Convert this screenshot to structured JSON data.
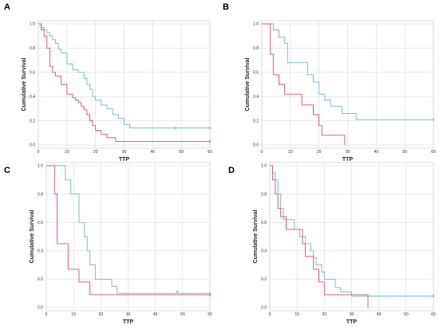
{
  "colors": {
    "blue": "#6cb6e6",
    "red": "#e0506e"
  },
  "chart_data": [
    {
      "panel": "A",
      "type": "line",
      "step": true,
      "xlabel": "TTP",
      "ylabel": "Cumulative Survival",
      "xlim": [
        0,
        60
      ],
      "ylim": [
        0,
        1
      ],
      "xticks": [
        0,
        10,
        20,
        30,
        40,
        50,
        60
      ],
      "yticks": [
        0.0,
        0.2,
        0.4,
        0.6,
        0.8,
        1.0
      ],
      "grid": true,
      "series": [
        {
          "color": "blue",
          "x": [
            0,
            1,
            2,
            3,
            4,
            5,
            6,
            7,
            8,
            10,
            12,
            14,
            16,
            17,
            18,
            19,
            20,
            22,
            24,
            26,
            28,
            30,
            32,
            60
          ],
          "y": [
            1.0,
            0.97,
            0.95,
            0.93,
            0.9,
            0.87,
            0.84,
            0.79,
            0.76,
            0.67,
            0.62,
            0.6,
            0.55,
            0.5,
            0.46,
            0.4,
            0.37,
            0.33,
            0.3,
            0.25,
            0.22,
            0.17,
            0.14,
            0.14
          ],
          "censored": [
            [
              48,
              0.14
            ],
            [
              60,
              0.14
            ]
          ]
        },
        {
          "color": "red",
          "x": [
            0,
            1,
            2,
            3,
            4,
            5,
            6,
            8,
            10,
            12,
            13,
            14,
            15,
            16,
            17,
            18,
            19,
            20,
            22,
            24,
            27,
            60
          ],
          "y": [
            1.0,
            0.95,
            0.9,
            0.8,
            0.65,
            0.6,
            0.57,
            0.5,
            0.42,
            0.39,
            0.37,
            0.35,
            0.32,
            0.29,
            0.25,
            0.2,
            0.16,
            0.12,
            0.09,
            0.06,
            0.03,
            0.03
          ],
          "censored": [
            [
              60,
              0.03
            ]
          ]
        }
      ]
    },
    {
      "panel": "B",
      "type": "line",
      "step": true,
      "xlabel": "TTP",
      "ylabel": "Cumulative Survival",
      "xlim": [
        0,
        60
      ],
      "ylim": [
        0,
        1
      ],
      "xticks": [
        0,
        10,
        20,
        30,
        40,
        50,
        60
      ],
      "yticks": [
        0.0,
        0.2,
        0.4,
        0.6,
        0.8,
        1.0
      ],
      "grid": true,
      "series": [
        {
          "color": "blue",
          "x": [
            0,
            2,
            4,
            6,
            8,
            9,
            16,
            18,
            20,
            22,
            24,
            28,
            33,
            60
          ],
          "y": [
            1.0,
            1.0,
            0.95,
            0.89,
            0.84,
            0.68,
            0.58,
            0.52,
            0.42,
            0.37,
            0.32,
            0.26,
            0.21,
            0.21
          ],
          "censored": [
            [
              60,
              0.21
            ]
          ]
        },
        {
          "color": "red",
          "x": [
            0,
            1,
            3,
            4,
            6,
            8,
            10,
            14,
            18,
            20,
            21,
            22,
            29
          ],
          "y": [
            1.0,
            1.0,
            0.75,
            0.58,
            0.5,
            0.42,
            0.42,
            0.33,
            0.25,
            0.16,
            0.08,
            0.08,
            0.0
          ],
          "censored": []
        }
      ]
    },
    {
      "panel": "C",
      "type": "line",
      "step": true,
      "xlabel": "TTP",
      "ylabel": "Cumulative Survival",
      "xlim": [
        0,
        60
      ],
      "ylim": [
        0,
        1
      ],
      "xticks": [
        0,
        10,
        20,
        30,
        40,
        50,
        60
      ],
      "yticks": [
        0.0,
        0.2,
        0.4,
        0.6,
        0.8,
        1.0
      ],
      "grid": true,
      "series": [
        {
          "color": "blue",
          "x": [
            0,
            5,
            7,
            9,
            12,
            14,
            15,
            16,
            18,
            20,
            24,
            26,
            60
          ],
          "y": [
            1.0,
            1.0,
            0.9,
            0.8,
            0.6,
            0.5,
            0.4,
            0.3,
            0.2,
            0.2,
            0.15,
            0.1,
            0.1
          ],
          "censored": [
            [
              48,
              0.11
            ],
            [
              60,
              0.1
            ]
          ]
        },
        {
          "color": "red",
          "x": [
            0,
            3,
            4,
            6,
            8,
            10,
            12,
            15,
            16,
            60
          ],
          "y": [
            1.0,
            0.8,
            0.45,
            0.45,
            0.27,
            0.27,
            0.18,
            0.18,
            0.09,
            0.09
          ],
          "censored": [
            [
              60,
              0.09
            ]
          ]
        }
      ]
    },
    {
      "panel": "D",
      "type": "line",
      "step": true,
      "xlabel": "TTP",
      "ylabel": "Cumulative Survival",
      "xlim": [
        0,
        60
      ],
      "ylim": [
        0,
        1
      ],
      "xticks": [
        0,
        10,
        20,
        30,
        40,
        50,
        60
      ],
      "yticks": [
        0.0,
        0.2,
        0.4,
        0.6,
        0.8,
        1.0
      ],
      "grid": true,
      "series": [
        {
          "color": "blue",
          "x": [
            0,
            1,
            2,
            3,
            4,
            5,
            6,
            9,
            11,
            13,
            15,
            16,
            17,
            19,
            20,
            24,
            26,
            30,
            35,
            60
          ],
          "y": [
            1.0,
            0.95,
            0.9,
            0.8,
            0.7,
            0.62,
            0.62,
            0.55,
            0.5,
            0.45,
            0.4,
            0.35,
            0.3,
            0.25,
            0.2,
            0.14,
            0.11,
            0.08,
            0.08,
            0.08
          ],
          "censored": [
            [
              60,
              0.08
            ]
          ]
        },
        {
          "color": "red",
          "x": [
            0,
            1,
            2,
            3,
            4,
            6,
            9,
            12,
            13,
            16,
            18,
            20,
            36
          ],
          "y": [
            1.0,
            0.9,
            0.8,
            0.7,
            0.64,
            0.55,
            0.55,
            0.45,
            0.36,
            0.27,
            0.18,
            0.09,
            0.0
          ],
          "censored": []
        }
      ]
    }
  ]
}
